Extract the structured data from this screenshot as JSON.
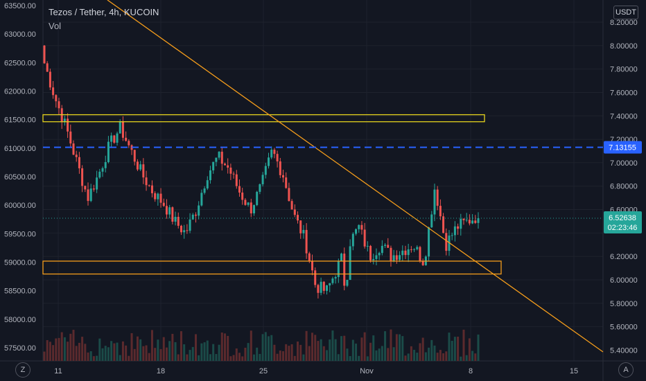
{
  "header": {
    "title": "Tezos / Tether, 4h, KUCOIN",
    "volume_label": "Vol"
  },
  "axis": {
    "unit_label": "USDT",
    "left_ticks": [
      "63500.00",
      "63000.00",
      "62500.00",
      "62000.00",
      "61500.00",
      "61000.00",
      "60500.00",
      "60000.00",
      "59500.00",
      "59000.00",
      "58500.00",
      "58000.00",
      "57500.00"
    ],
    "right_ticks": [
      "8.20000",
      "8.00000",
      "7.80000",
      "7.60000",
      "7.40000",
      "7.20000",
      "7.00000",
      "6.80000",
      "6.60000",
      "6.20000",
      "6.00000",
      "5.80000",
      "5.60000",
      "5.40000"
    ],
    "x_ticks": [
      "11",
      "18",
      "25",
      "Nov",
      "8",
      "15"
    ]
  },
  "corner": {
    "left": "Z",
    "right": "A"
  },
  "price_badges": {
    "level": "7.13155",
    "last": "6.52638",
    "countdown": "02:23:46"
  },
  "colors": {
    "up": "#26a69a",
    "down": "#ef5350",
    "trendline": "#f59d1b",
    "zone_yellow": "#e6d31d",
    "zone_orange": "#f59d1b",
    "level_line": "#2962ff"
  },
  "chart_data": {
    "type": "candlestick",
    "title": "Tezos / Tether, 4h, KUCOIN",
    "x_ticks": [
      "11",
      "18",
      "25",
      "Nov",
      "8",
      "15"
    ],
    "y_right_range": [
      5.34,
      8.3
    ],
    "y_left_range": [
      57350,
      63550
    ],
    "horizontal_level": 7.13155,
    "last_price": 6.52638,
    "zones": [
      {
        "name": "resistance",
        "low": 7.35,
        "high": 7.41
      },
      {
        "name": "support",
        "low": 6.05,
        "high": 6.16
      }
    ],
    "trendline": [
      {
        "x": "8",
        "y": 8.3
      },
      {
        "x": "15+",
        "y": 5.4
      }
    ],
    "candles_close_keyframes": [
      7.85,
      7.55,
      7.3,
      7.0,
      6.7,
      6.9,
      7.15,
      7.3,
      7.1,
      6.9,
      6.75,
      6.65,
      6.5,
      6.4,
      6.6,
      6.9,
      7.05,
      6.95,
      6.75,
      6.6,
      6.8,
      7.1,
      6.9,
      6.55,
      6.35,
      5.95,
      5.9,
      6.1,
      6.3,
      6.45,
      6.2,
      6.3,
      6.2,
      6.25,
      6.3,
      6.15,
      6.8,
      6.3,
      6.45,
      6.5,
      6.55
    ],
    "volume_note": "volume bars along bottom of pane"
  }
}
